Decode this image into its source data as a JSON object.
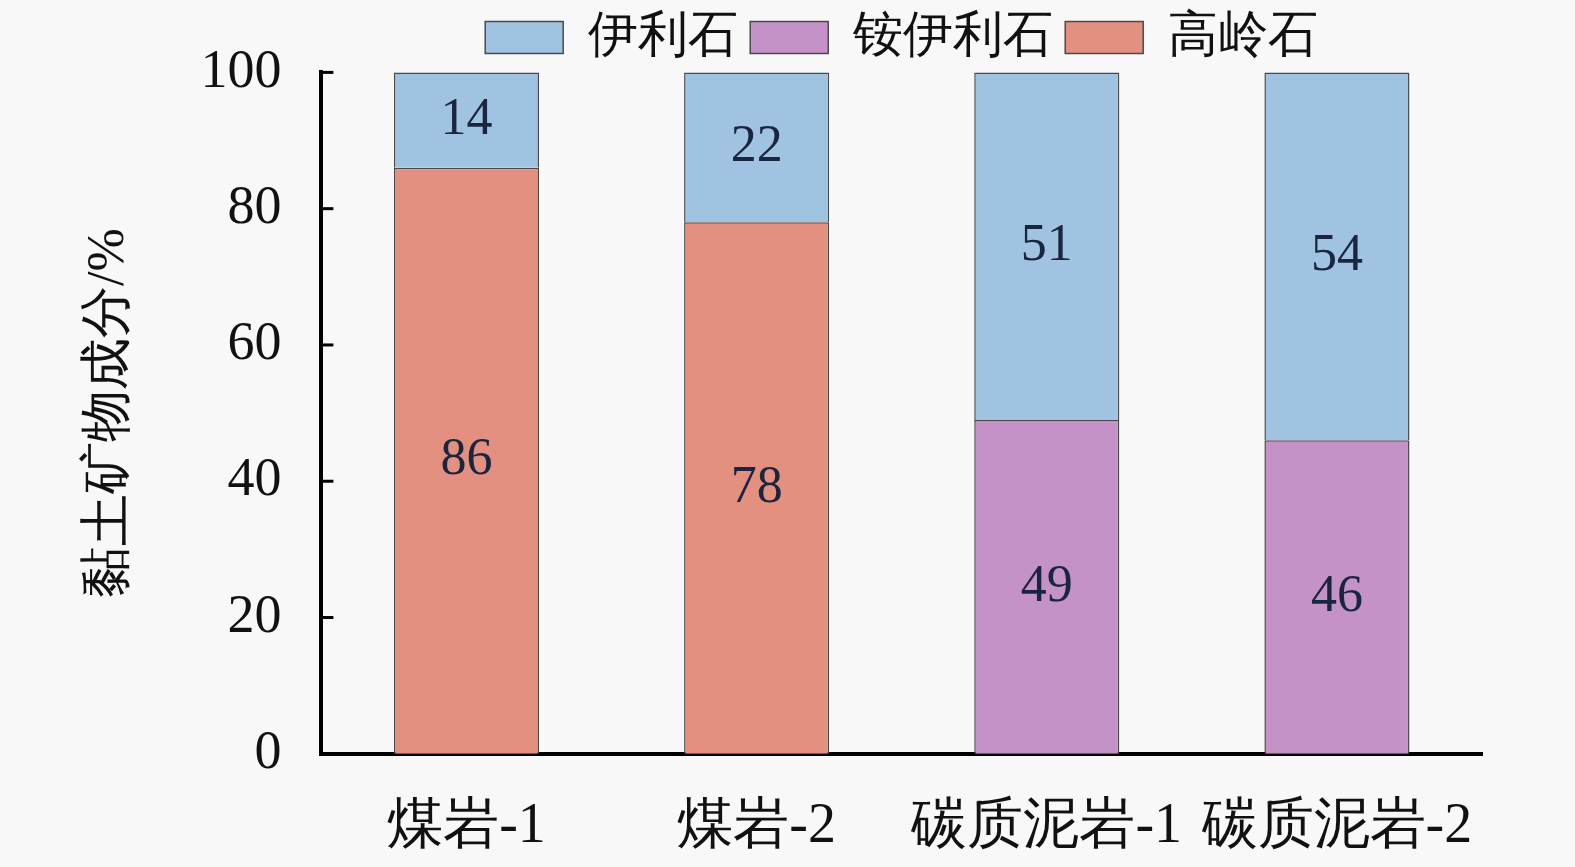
{
  "chart_data": {
    "type": "bar",
    "categories": [
      "煤岩-1",
      "煤岩-2",
      "碳质泥岩-1",
      "碳质泥岩-2"
    ],
    "series": [
      {
        "name": "高岭石",
        "color": "#e39080",
        "values": [
          86,
          78,
          null,
          null
        ]
      },
      {
        "name": "铵伊利石",
        "color": "#c592c8",
        "values": [
          null,
          null,
          49,
          46
        ]
      },
      {
        "name": "伊利石",
        "color": "#9fc3e0",
        "values": [
          14,
          22,
          51,
          54
        ]
      }
    ],
    "ylabel": "黏土矿物成分/%",
    "ylim": [
      0,
      100
    ],
    "yticks": [
      0,
      20,
      40,
      60,
      80,
      100
    ],
    "stacked": true,
    "legend": "top",
    "data_labels": true
  }
}
